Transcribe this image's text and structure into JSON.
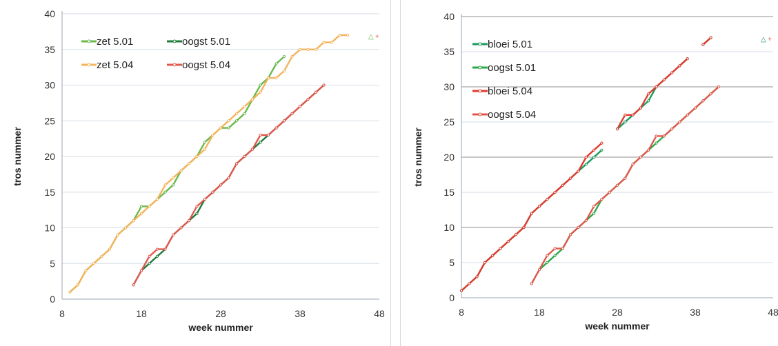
{
  "chart_data": [
    {
      "type": "line",
      "xlabel": "week nummer",
      "ylabel": "tros nummer",
      "xlim": [
        8,
        48
      ],
      "ylim": [
        0,
        40
      ],
      "xticks": [
        "8",
        "18",
        "28",
        "38",
        "48"
      ],
      "yticks": [
        "0",
        "5",
        "10",
        "15",
        "20",
        "25",
        "30",
        "35",
        "40"
      ],
      "grid": "horizontal",
      "legend_position": "top-left",
      "legend_columns": 2,
      "stray_markers": [
        "△",
        "+"
      ],
      "series": [
        {
          "name": "zet 5.01",
          "color": "#6ab84c",
          "x": [
            9,
            10,
            11,
            12,
            13,
            14,
            15,
            16,
            17,
            18,
            19,
            20,
            21,
            22,
            23,
            24,
            25,
            26,
            27,
            28,
            29,
            30,
            31,
            32,
            33,
            34,
            35,
            36
          ],
          "y": [
            1,
            2,
            4,
            5,
            6,
            7,
            9,
            10,
            11,
            13,
            13,
            14,
            15,
            16,
            18,
            19,
            20,
            22,
            23,
            24,
            24,
            25,
            26,
            28,
            30,
            31,
            33,
            34
          ]
        },
        {
          "name": "oogst 5.01",
          "color": "#1e7a3a",
          "x": [
            17,
            18,
            19,
            20,
            21,
            22,
            23,
            24,
            25,
            26,
            27,
            28,
            29,
            30,
            31,
            32,
            33,
            34,
            35,
            36,
            37,
            38,
            39,
            40,
            41
          ],
          "y": [
            2,
            4,
            5,
            6,
            7,
            9,
            10,
            11,
            12,
            14,
            15,
            16,
            17,
            19,
            20,
            21,
            22,
            23,
            24,
            25,
            26,
            27,
            28,
            29,
            30
          ]
        },
        {
          "name": "zet 5.04",
          "color": "#f5b35a",
          "x": [
            9,
            10,
            11,
            12,
            13,
            14,
            15,
            16,
            17,
            18,
            19,
            20,
            21,
            22,
            23,
            24,
            25,
            26,
            27,
            28,
            29,
            30,
            31,
            32,
            33,
            34,
            35,
            36,
            37,
            38,
            39,
            40,
            41,
            42,
            43,
            44
          ],
          "y": [
            1,
            2,
            4,
            5,
            6,
            7,
            9,
            10,
            11,
            12,
            13,
            14,
            16,
            17,
            18,
            19,
            20,
            21,
            23,
            24,
            25,
            26,
            27,
            28,
            29,
            31,
            31,
            32,
            34,
            35,
            35,
            35,
            36,
            36,
            37,
            37
          ]
        },
        {
          "name": "oogst 5.04",
          "color": "#e2574c",
          "x": [
            17,
            18,
            19,
            20,
            21,
            22,
            23,
            24,
            25,
            26,
            27,
            28,
            29,
            30,
            31,
            32,
            33,
            34,
            35,
            36,
            37,
            38,
            39,
            40,
            41
          ],
          "y": [
            2,
            4,
            6,
            7,
            7,
            9,
            10,
            11,
            13,
            14,
            15,
            16,
            17,
            19,
            20,
            21,
            23,
            23,
            24,
            25,
            26,
            27,
            28,
            29,
            30
          ]
        }
      ]
    },
    {
      "type": "line",
      "xlabel": "week nummer",
      "ylabel": "tros nummer",
      "xlim": [
        8,
        48
      ],
      "ylim": [
        0,
        40
      ],
      "xticks": [
        "8",
        "18",
        "28",
        "38",
        "48"
      ],
      "yticks": [
        "0",
        "5",
        "10",
        "15",
        "20",
        "25",
        "30",
        "35",
        "40"
      ],
      "grid": "horizontal",
      "legend_position": "top-left",
      "legend_columns": 1,
      "stray_markers": [
        "△",
        "+"
      ],
      "series": [
        {
          "name": "bloei 5.01",
          "color": "#1a9a5c",
          "segments": [
            {
              "x": [
                8,
                9,
                10,
                11,
                12,
                13,
                14,
                15,
                16,
                17,
                18,
                19,
                20,
                21,
                22,
                23,
                24,
                25,
                26
              ],
              "y": [
                1,
                2,
                3,
                5,
                6,
                7,
                8,
                9,
                10,
                12,
                13,
                14,
                15,
                16,
                17,
                18,
                19,
                20,
                21
              ]
            },
            {
              "x": [
                28,
                29,
                30,
                31,
                32,
                33,
                34,
                35,
                36,
                37
              ],
              "y": [
                24,
                25,
                26,
                27,
                28,
                30,
                31,
                32,
                33,
                34
              ]
            },
            {
              "x": [
                39,
                40
              ],
              "y": [
                36,
                37
              ]
            }
          ]
        },
        {
          "name": "oogst 5.01",
          "color": "#2da84a",
          "segments": [
            {
              "x": [
                17,
                18,
                19,
                20,
                21,
                22,
                23,
                24,
                25,
                26,
                27,
                28,
                29,
                30,
                31,
                32,
                33,
                34,
                35,
                36,
                37,
                38,
                39,
                40,
                41
              ],
              "y": [
                2,
                4,
                5,
                6,
                7,
                9,
                10,
                11,
                12,
                14,
                15,
                16,
                17,
                19,
                20,
                21,
                22,
                23,
                24,
                25,
                26,
                27,
                28,
                29,
                30
              ]
            }
          ]
        },
        {
          "name": "bloei 5.04",
          "color": "#e03a2e",
          "segments": [
            {
              "x": [
                8,
                9,
                10,
                11,
                12,
                13,
                14,
                15,
                16,
                17,
                18,
                19,
                20,
                21,
                22,
                23,
                24,
                25,
                26
              ],
              "y": [
                1,
                2,
                3,
                5,
                6,
                7,
                8,
                9,
                10,
                12,
                13,
                14,
                15,
                16,
                17,
                18,
                20,
                21,
                22
              ]
            },
            {
              "x": [
                28,
                29,
                30,
                31,
                32,
                33,
                34,
                35,
                36,
                37
              ],
              "y": [
                24,
                26,
                26,
                27,
                29,
                30,
                31,
                32,
                33,
                34
              ]
            },
            {
              "x": [
                39,
                40
              ],
              "y": [
                36,
                37
              ]
            }
          ]
        },
        {
          "name": "oogst 5.04",
          "color": "#e2574c",
          "segments": [
            {
              "x": [
                17,
                18,
                19,
                20,
                21,
                22,
                23,
                24,
                25,
                26,
                27,
                28,
                29,
                30,
                31,
                32,
                33,
                34,
                35,
                36,
                37,
                38,
                39,
                40,
                41
              ],
              "y": [
                2,
                4,
                6,
                7,
                7,
                9,
                10,
                11,
                13,
                14,
                15,
                16,
                17,
                19,
                20,
                21,
                23,
                23,
                24,
                25,
                26,
                27,
                28,
                29,
                30
              ]
            }
          ]
        }
      ]
    }
  ]
}
